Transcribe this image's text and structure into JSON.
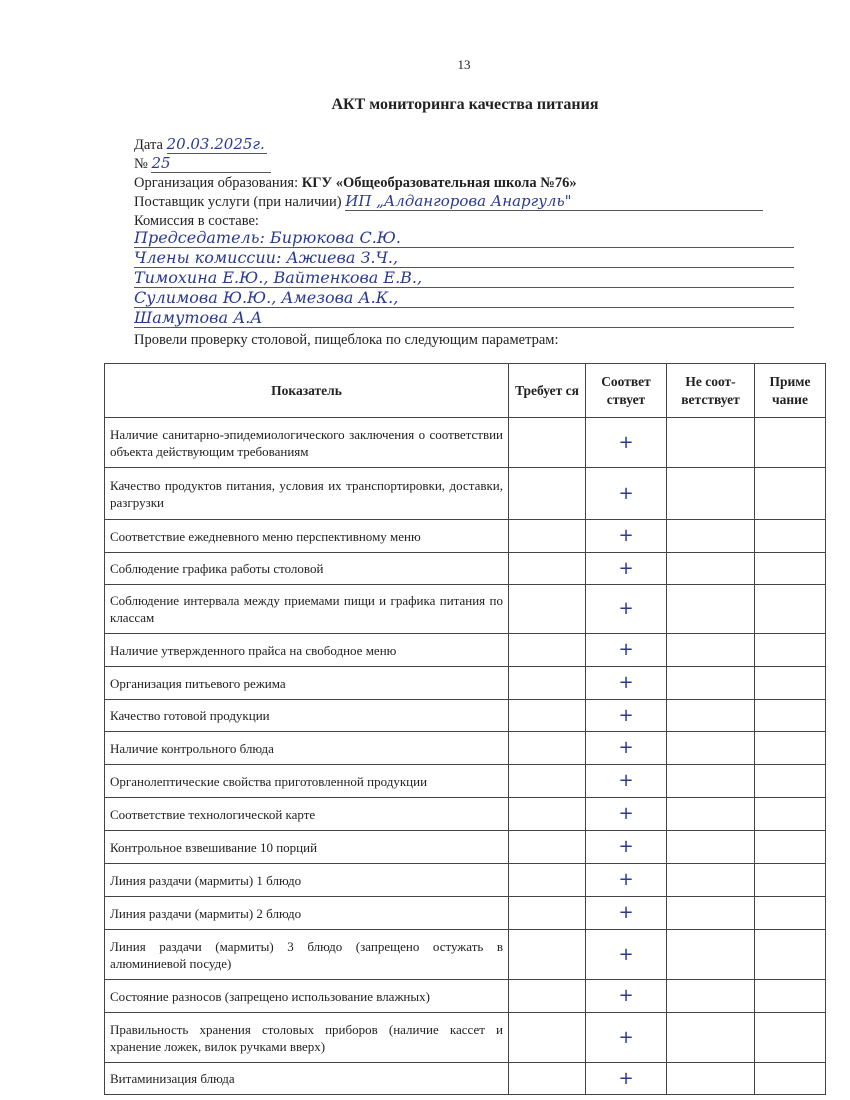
{
  "page_number": "13",
  "title": "АКТ мониторинга качества питания",
  "date_label": "Дата",
  "date_value": "20.03.2025г.",
  "number_label": "№",
  "number_value": "25",
  "org_label": "Организация образования:",
  "org_value": "КГУ «Общеобразовательная школа №76»",
  "supplier_label": "Поставщик услуги (при наличии)",
  "supplier_value": "ИП „Алдангорова Анаргуль\"",
  "commission_label": "Комиссия в составе:",
  "commission_lines": [
    "Председатель: Бирюкова С.Ю.",
    "Члены комиссии: Ажиева З.Ч.,",
    "Тимохина Е.Ю., Вайтенкова Е.В.,",
    "Сулимова Ю.Ю., Амезова А.К.,",
    "Шамутова А.А"
  ],
  "intro": "Провели проверку столовой, пищеблока по следующим параметрам:",
  "table": {
    "headers": [
      "Показатель",
      "Требует ся",
      "Соответ ствует",
      "Не соот-ветствует",
      "Приме чание"
    ],
    "rows": [
      {
        "label": "Наличие санитарно-эпидемиологического заключения о соответствии объекта действующим требованиям",
        "mark": "+"
      },
      {
        "label": "Качество продуктов питания, условия их транспортировки, доставки, разгрузки",
        "mark": "+"
      },
      {
        "label": "Соответствие ежедневного меню перспективному меню",
        "mark": "+"
      },
      {
        "label": "Соблюдение графика работы столовой",
        "mark": "+"
      },
      {
        "label": "Соблюдение интервала между приемами пищи и графика питания по классам",
        "mark": "+"
      },
      {
        "label": "Наличие утвержденного прайса на свободное меню",
        "mark": "+"
      },
      {
        "label": "Организация питьевого режима",
        "mark": "+"
      },
      {
        "label": "Качество готовой продукции",
        "mark": "+"
      },
      {
        "label": "Наличие контрольного блюда",
        "mark": "+"
      },
      {
        "label": "Органолептические свойства приготовленной продукции",
        "mark": "+"
      },
      {
        "label": "Соответствие технологической карте",
        "mark": "+"
      },
      {
        "label": "Контрольное взвешивание 10 порций",
        "mark": "+"
      },
      {
        "label": "Линия раздачи (мармиты) 1 блюдо",
        "mark": "+"
      },
      {
        "label": "Линия раздачи (мармиты) 2 блюдо",
        "mark": "+"
      },
      {
        "label": "Линия раздачи (мармиты) 3 блюдо (запрещено остужать в алюминиевой посуде)",
        "mark": "+"
      },
      {
        "label": "Состояние разносов (запрещено использование влажных)",
        "mark": "+"
      },
      {
        "label": "Правильность хранения столовых приборов (наличие кассет и хранение ложек, вилок ручками вверх)",
        "mark": "+"
      },
      {
        "label": "Витаминизация блюда",
        "mark": "+"
      }
    ]
  }
}
